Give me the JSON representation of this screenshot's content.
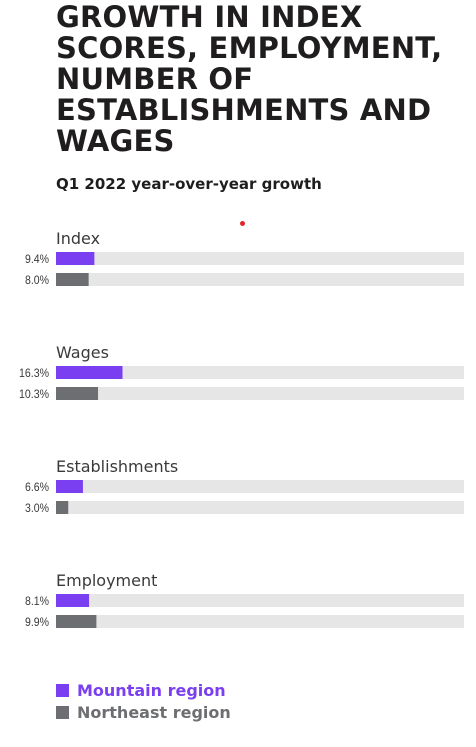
{
  "colors": {
    "mountain": "#7b3ff2",
    "northeast": "#6d6e71",
    "track": "#e6e6e6",
    "label": "#3a3a3a",
    "accent_dot": "#e0262b"
  },
  "chart_data": {
    "type": "bar",
    "orientation": "horizontal",
    "title": "GROWTH IN INDEX SCORES, EMPLOYMENT, NUMBER OF ESTABLISHMENTS AND WAGES",
    "subtitle": "Q1 2022 year-over-year growth",
    "categories": [
      "Index",
      "Wages",
      "Establishments",
      "Employment"
    ],
    "series": [
      {
        "name": "Mountain region",
        "values": [
          9.4,
          16.3,
          6.6,
          8.1
        ],
        "labels": [
          "9.4%",
          "16.3%",
          "6.6%",
          "8.1%"
        ]
      },
      {
        "name": "Northeast region",
        "values": [
          8.0,
          10.3,
          3.0,
          9.9
        ],
        "labels": [
          "8.0%",
          "10.3%",
          "3.0%",
          "9.9%"
        ]
      }
    ],
    "xlim": [
      0,
      100
    ],
    "unit": "%",
    "grid": false,
    "legend_position": "bottom-left"
  }
}
